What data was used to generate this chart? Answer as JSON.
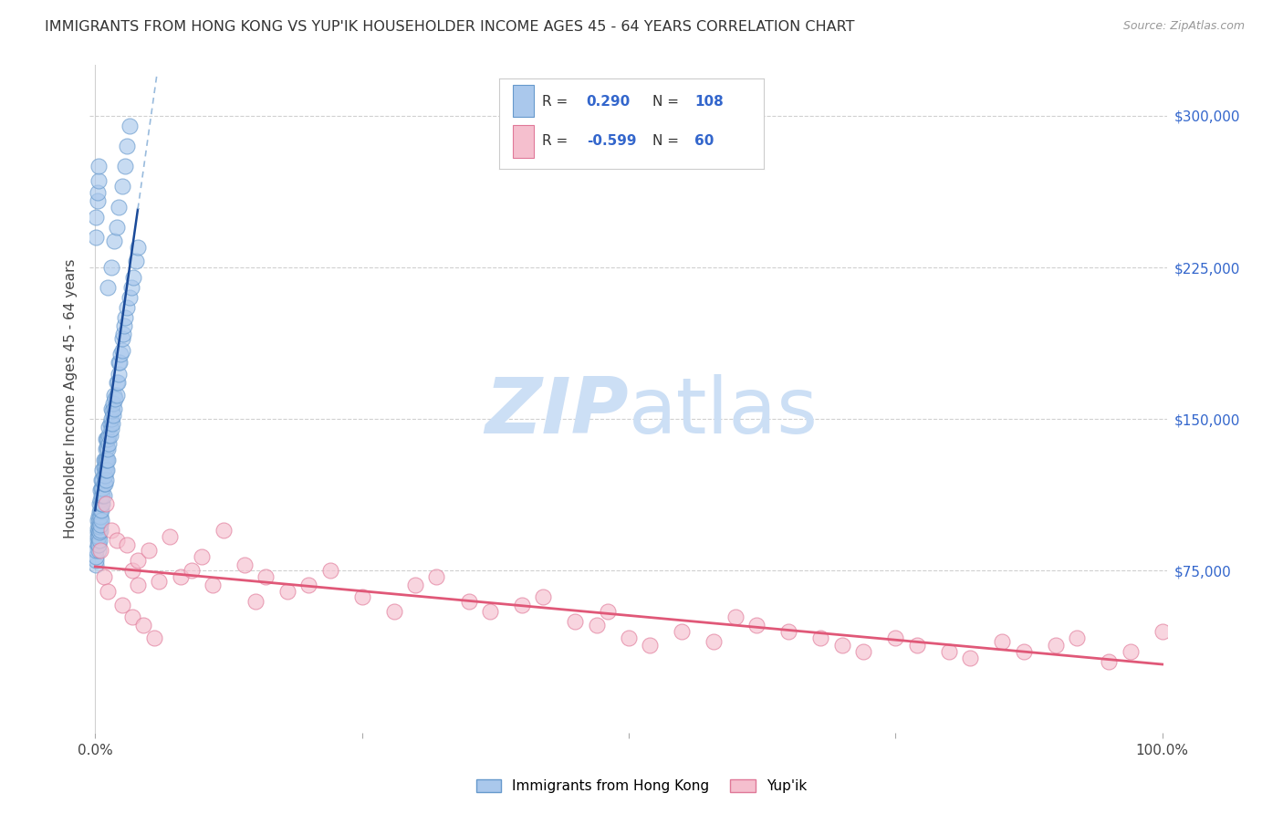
{
  "title": "IMMIGRANTS FROM HONG KONG VS YUP'IK HOUSEHOLDER INCOME AGES 45 - 64 YEARS CORRELATION CHART",
  "source": "Source: ZipAtlas.com",
  "ylabel": "Householder Income Ages 45 - 64 years",
  "blue_R": 0.29,
  "blue_N": 108,
  "pink_R": -0.599,
  "pink_N": 60,
  "blue_label": "Immigrants from Hong Kong",
  "pink_label": "Yup'ik",
  "xlim": [
    -0.005,
    1.005
  ],
  "ylim": [
    -5000,
    325000
  ],
  "yticks": [
    75000,
    150000,
    225000,
    300000
  ],
  "ytick_labels": [
    "$75,000",
    "$150,000",
    "$225,000",
    "$300,000"
  ],
  "xticks": [
    0.0,
    0.25,
    0.5,
    0.75,
    1.0
  ],
  "xtick_labels": [
    "0.0%",
    "",
    "",
    "",
    "100.0%"
  ],
  "bg_color": "#ffffff",
  "grid_color": "#d0d0d0",
  "blue_dot_color": "#aac8ec",
  "blue_dot_edge": "#6699cc",
  "pink_dot_color": "#f5bfce",
  "pink_dot_edge": "#e07898",
  "blue_line_color": "#1a4a99",
  "blue_dash_color": "#99bbdd",
  "pink_line_color": "#e05878",
  "watermark_color": "#ccdff5",
  "blue_x": [
    0.001,
    0.001,
    0.001,
    0.001,
    0.002,
    0.002,
    0.002,
    0.002,
    0.002,
    0.002,
    0.003,
    0.003,
    0.003,
    0.003,
    0.003,
    0.003,
    0.004,
    0.004,
    0.004,
    0.004,
    0.004,
    0.004,
    0.005,
    0.005,
    0.005,
    0.005,
    0.005,
    0.005,
    0.006,
    0.006,
    0.006,
    0.006,
    0.006,
    0.006,
    0.007,
    0.007,
    0.007,
    0.007,
    0.007,
    0.008,
    0.008,
    0.008,
    0.008,
    0.008,
    0.009,
    0.009,
    0.009,
    0.009,
    0.01,
    0.01,
    0.01,
    0.01,
    0.01,
    0.011,
    0.011,
    0.011,
    0.011,
    0.012,
    0.012,
    0.012,
    0.013,
    0.013,
    0.013,
    0.014,
    0.014,
    0.015,
    0.015,
    0.015,
    0.016,
    0.016,
    0.017,
    0.017,
    0.018,
    0.018,
    0.019,
    0.02,
    0.02,
    0.021,
    0.022,
    0.022,
    0.023,
    0.024,
    0.025,
    0.025,
    0.026,
    0.027,
    0.028,
    0.03,
    0.032,
    0.034,
    0.036,
    0.038,
    0.04,
    0.001,
    0.001,
    0.002,
    0.002,
    0.003,
    0.003,
    0.012,
    0.015,
    0.018,
    0.02,
    0.022,
    0.025,
    0.028,
    0.03,
    0.032
  ],
  "blue_y": [
    78000,
    80000,
    82000,
    85000,
    88000,
    90000,
    92000,
    94000,
    96000,
    100000,
    85000,
    88000,
    92000,
    95000,
    98000,
    102000,
    90000,
    94000,
    97000,
    100000,
    104000,
    108000,
    95000,
    98000,
    102000,
    105000,
    110000,
    115000,
    100000,
    105000,
    108000,
    112000,
    116000,
    120000,
    108000,
    112000,
    116000,
    120000,
    125000,
    112000,
    118000,
    122000,
    126000,
    130000,
    118000,
    122000,
    126000,
    130000,
    120000,
    125000,
    130000,
    135000,
    140000,
    125000,
    130000,
    136000,
    140000,
    130000,
    135000,
    140000,
    138000,
    142000,
    146000,
    142000,
    148000,
    145000,
    150000,
    155000,
    148000,
    154000,
    152000,
    158000,
    155000,
    162000,
    160000,
    162000,
    168000,
    168000,
    172000,
    178000,
    178000,
    182000,
    184000,
    190000,
    192000,
    196000,
    200000,
    205000,
    210000,
    215000,
    220000,
    228000,
    235000,
    240000,
    250000,
    258000,
    262000,
    268000,
    275000,
    215000,
    225000,
    238000,
    245000,
    255000,
    265000,
    275000,
    285000,
    295000
  ],
  "pink_x": [
    0.01,
    0.015,
    0.02,
    0.03,
    0.035,
    0.04,
    0.04,
    0.05,
    0.06,
    0.07,
    0.08,
    0.09,
    0.1,
    0.11,
    0.12,
    0.14,
    0.15,
    0.16,
    0.18,
    0.2,
    0.22,
    0.25,
    0.28,
    0.3,
    0.32,
    0.35,
    0.37,
    0.4,
    0.42,
    0.45,
    0.47,
    0.48,
    0.5,
    0.52,
    0.55,
    0.58,
    0.6,
    0.62,
    0.65,
    0.68,
    0.7,
    0.72,
    0.75,
    0.77,
    0.8,
    0.82,
    0.85,
    0.87,
    0.9,
    0.92,
    0.95,
    0.97,
    1.0,
    0.005,
    0.008,
    0.012,
    0.025,
    0.035,
    0.045,
    0.055
  ],
  "pink_y": [
    108000,
    95000,
    90000,
    88000,
    75000,
    80000,
    68000,
    85000,
    70000,
    92000,
    72000,
    75000,
    82000,
    68000,
    95000,
    78000,
    60000,
    72000,
    65000,
    68000,
    75000,
    62000,
    55000,
    68000,
    72000,
    60000,
    55000,
    58000,
    62000,
    50000,
    48000,
    55000,
    42000,
    38000,
    45000,
    40000,
    52000,
    48000,
    45000,
    42000,
    38000,
    35000,
    42000,
    38000,
    35000,
    32000,
    40000,
    35000,
    38000,
    42000,
    30000,
    35000,
    45000,
    85000,
    72000,
    65000,
    58000,
    52000,
    48000,
    42000
  ]
}
